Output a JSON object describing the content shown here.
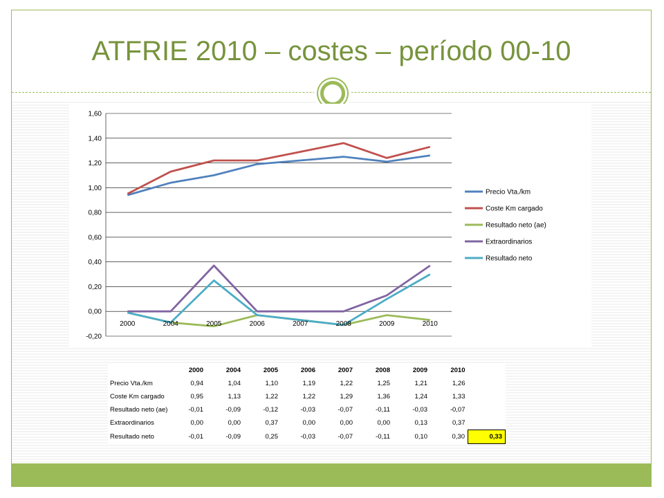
{
  "slide": {
    "title": "ATFRIE 2010 – costes – período 00-10"
  },
  "colors": {
    "accent": "#9bbb59",
    "title": "#77933c",
    "highlight": "#ffff00"
  },
  "chart_data": {
    "type": "line",
    "categories": [
      "2000",
      "2004",
      "2005",
      "2006",
      "2007",
      "2008",
      "2009",
      "2010"
    ],
    "series": [
      {
        "name": "Precio Vta./km",
        "color": "#4f81bd",
        "values": [
          0.94,
          1.04,
          1.1,
          1.19,
          1.22,
          1.25,
          1.21,
          1.26
        ]
      },
      {
        "name": "Coste Km cargado",
        "color": "#c0504d",
        "values": [
          0.95,
          1.13,
          1.22,
          1.22,
          1.29,
          1.36,
          1.24,
          1.33
        ]
      },
      {
        "name": "Resultado neto (ae)",
        "color": "#9bbb59",
        "values": [
          -0.01,
          -0.09,
          -0.12,
          -0.03,
          -0.07,
          -0.11,
          -0.03,
          -0.07
        ]
      },
      {
        "name": "Extraordinarios",
        "color": "#8064a2",
        "values": [
          0.0,
          0.0,
          0.37,
          0.0,
          0.0,
          0.0,
          0.13,
          0.37
        ]
      },
      {
        "name": "Resultado neto",
        "color": "#4bacc6",
        "values": [
          -0.01,
          -0.09,
          0.25,
          -0.03,
          -0.07,
          -0.11,
          0.1,
          0.3
        ]
      }
    ],
    "yticks": [
      "1,60",
      "1,40",
      "1,20",
      "1,00",
      "0,80",
      "0,60",
      "0,40",
      "0,20",
      "0,00",
      "-0,20"
    ],
    "ylim": [
      -0.2,
      1.6
    ],
    "grid": true,
    "legend_position": "right",
    "title": "",
    "xlabel": "",
    "ylabel": ""
  },
  "table": {
    "columns": [
      "2000",
      "2004",
      "2005",
      "2006",
      "2007",
      "2008",
      "2009",
      "2010"
    ],
    "rows": [
      {
        "label": "Precio Vta./km",
        "values": [
          "0,94",
          "1,04",
          "1,10",
          "1,19",
          "1,22",
          "1,25",
          "1,21",
          "1,26"
        ]
      },
      {
        "label": "Coste Km cargado",
        "values": [
          "0,95",
          "1,13",
          "1,22",
          "1,22",
          "1,29",
          "1,36",
          "1,24",
          "1,33"
        ]
      },
      {
        "label": "Resultado neto (ae)",
        "values": [
          "-0,01",
          "-0,09",
          "-0,12",
          "-0,03",
          "-0,07",
          "-0,11",
          "-0,03",
          "-0,07"
        ]
      },
      {
        "label": "Extraordinarios",
        "values": [
          "0,00",
          "0,00",
          "0,37",
          "0,00",
          "0,00",
          "0,00",
          "0,13",
          "0,37"
        ]
      },
      {
        "label": "Resultado neto",
        "values": [
          "-0,01",
          "-0,09",
          "0,25",
          "-0,03",
          "-0,07",
          "-0,11",
          "0,10",
          "0,30"
        ],
        "extra": "0,33"
      }
    ]
  }
}
